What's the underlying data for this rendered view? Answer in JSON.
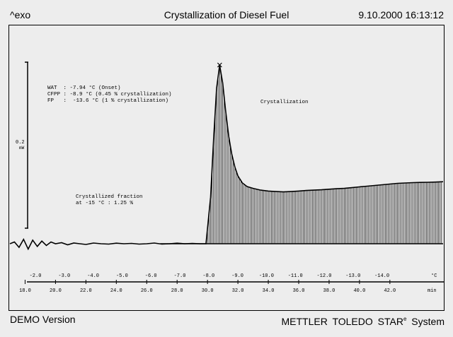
{
  "header": {
    "exo_label": "^exo",
    "title": "Crystallization of Diesel Fuel",
    "timestamp": "9.10.2000 16:13:12"
  },
  "footer": {
    "demo_label": "DEMO Version",
    "brand": "METTLER  TOLEDO  STAR",
    "brand_sup": "e",
    "brand_suffix": " System"
  },
  "chart_data": {
    "type": "line",
    "scale_bar": {
      "value": "0.2",
      "unit": "mW"
    },
    "annotations": {
      "wat": "WAT  : -7.94 °C (Onset)",
      "cfpp": "CFPP : -8.9 °C (0.45 % crystallization)",
      "fp": "FP   :  -13.6 °C (1 % crystallization)",
      "peak_label": "Crystallization",
      "fraction_line1": "Crystallized fraction",
      "fraction_line2": "at -15 °C : 1.25 %"
    },
    "temp_axis": {
      "unit": "°C",
      "ticks": [
        "-2.0",
        "-3.0",
        "-4.0",
        "-5.0",
        "-6.0",
        "-7.0",
        "-8.0",
        "-9.0",
        "-10.0",
        "-11.0",
        "-12.0",
        "-13.0",
        "-14.0"
      ]
    },
    "time_axis": {
      "unit": "min",
      "range": [
        17,
        45.5
      ],
      "ticks": [
        "18.0",
        "20.0",
        "22.0",
        "24.0",
        "26.0",
        "28.0",
        "30.0",
        "32.0",
        "34.0",
        "36.0",
        "38.0",
        "40.0",
        "42.0"
      ]
    },
    "y_range": [
      0,
      1
    ],
    "baseline_y": 0.0,
    "shaded_from_x": 29.9,
    "series": [
      {
        "x": [
          17.0,
          17.3,
          17.6,
          17.9,
          18.2,
          18.5,
          18.8,
          19.1,
          19.4,
          19.7,
          20.0,
          20.4,
          20.8,
          21.2,
          21.6,
          22.0,
          22.5,
          23.0,
          23.5,
          24.0,
          24.5,
          25.0,
          25.5,
          26.0,
          26.5,
          27.0,
          27.5,
          28.0,
          28.5,
          29.0,
          29.5,
          29.9,
          30.2,
          30.4,
          30.6,
          30.8,
          31.0,
          31.2,
          31.4,
          31.6,
          31.8,
          32.0,
          32.3,
          32.6,
          33.0,
          33.5,
          34.0,
          34.5,
          35.0,
          35.5,
          36.0,
          36.5,
          37.0,
          37.5,
          38.0,
          38.5,
          39.0,
          39.5,
          40.0,
          40.5,
          41.0,
          41.5,
          42.0,
          42.5,
          43.0,
          43.5,
          44.0,
          44.5,
          45.0,
          45.5
        ],
        "y": [
          0.0,
          0.01,
          -0.02,
          0.025,
          -0.03,
          0.02,
          -0.015,
          0.015,
          -0.01,
          0.01,
          0.0,
          0.006,
          -0.006,
          0.004,
          0.0,
          -0.004,
          0.004,
          0.0,
          -0.002,
          0.003,
          0.0,
          0.002,
          -0.002,
          0.0,
          0.004,
          -0.002,
          0.0,
          0.003,
          0.0,
          0.002,
          0.0,
          0.0,
          0.26,
          0.58,
          0.87,
          1.0,
          0.9,
          0.74,
          0.6,
          0.5,
          0.43,
          0.38,
          0.34,
          0.32,
          0.31,
          0.3,
          0.295,
          0.292,
          0.29,
          0.292,
          0.295,
          0.298,
          0.3,
          0.302,
          0.305,
          0.308,
          0.31,
          0.314,
          0.318,
          0.322,
          0.326,
          0.33,
          0.334,
          0.338,
          0.34,
          0.342,
          0.343,
          0.344,
          0.345,
          0.347
        ]
      }
    ],
    "grid": false
  }
}
